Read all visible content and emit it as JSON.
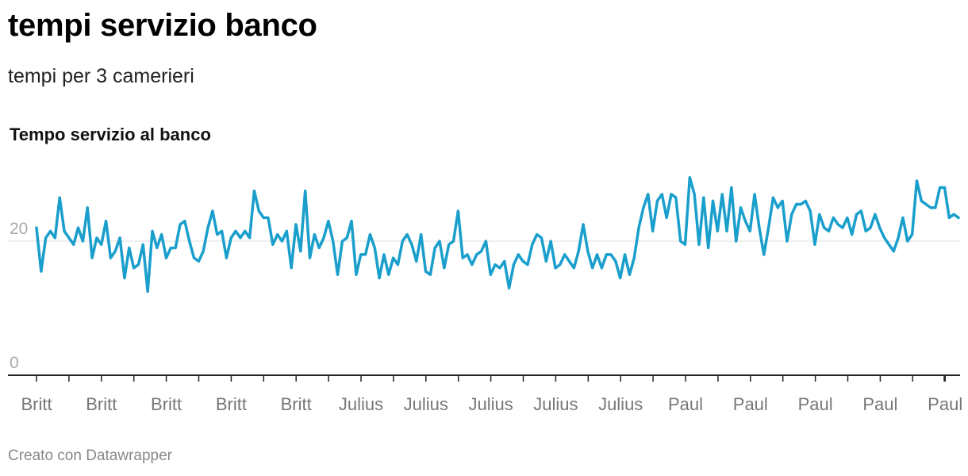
{
  "header": {
    "title": "tempi servizio banco",
    "subtitle": "tempi per 3 camerieri"
  },
  "footer": {
    "credit": "Creato con Datawrapper"
  },
  "colors": {
    "line": "#1a9fcc",
    "grid": "#dddddd",
    "axis": "#222222",
    "tick_label": "#777777",
    "y_tick_label": "#aaaaaa"
  },
  "chart_data": {
    "type": "line",
    "title": "Tempo servizio al banco",
    "xlabel": "",
    "ylabel": "",
    "ylim": [
      0,
      30
    ],
    "grid": "horizontal",
    "y_ticks": [
      0,
      20
    ],
    "x_tick_labels": [
      "Britt",
      "Britt",
      "Britt",
      "Britt",
      "Britt",
      "Julius",
      "Julius",
      "Julius",
      "Julius",
      "Julius",
      "Paul",
      "Paul",
      "Paul",
      "Paul",
      "Paul"
    ],
    "series": [
      {
        "values": [
          22,
          15.5,
          20.5,
          21.5,
          20.5,
          26.5,
          21.5,
          20.5,
          19.5,
          22,
          20,
          25,
          17.5,
          20.5,
          19.5,
          23,
          17.5,
          18.5,
          20.5,
          14.5,
          19,
          16,
          16.5,
          19.5,
          12.5,
          21.5,
          19,
          21,
          17.5,
          19,
          19,
          22.5,
          23,
          20,
          17.5,
          17,
          18.5,
          22,
          24.5,
          21,
          21.5,
          17.5,
          20.5,
          21.5,
          20.5,
          21.5,
          20.5,
          27.5,
          24.5,
          23.5,
          23.5,
          19.5,
          21,
          20,
          21.5,
          16,
          22.5,
          18.5,
          27.5,
          17.5,
          21,
          19,
          20.5,
          23,
          20,
          15,
          20,
          20.5,
          23,
          15,
          18,
          18,
          21,
          19,
          14.5,
          18,
          15,
          17.5,
          16.5,
          20,
          21,
          19.5,
          17,
          21,
          15.5,
          15,
          19,
          20,
          16,
          19.5,
          20,
          24.5,
          17.5,
          18,
          16.5,
          18,
          18.5,
          20,
          15,
          16.5,
          16,
          17,
          13,
          16.5,
          18,
          17,
          16.5,
          19.5,
          21,
          20.5,
          17,
          20,
          16,
          16.5,
          18,
          17,
          16,
          18.5,
          22.5,
          18.5,
          16,
          18,
          16,
          18,
          18,
          17,
          14.5,
          18,
          15,
          17.5,
          22,
          25,
          27,
          21.5,
          26,
          27,
          23.5,
          27,
          26.5,
          20,
          19.5,
          29.5,
          27,
          19.5,
          26.5,
          19,
          26,
          21.5,
          27,
          21.5,
          28,
          20,
          25,
          23,
          21.5,
          27,
          22,
          18,
          22,
          26.5,
          25,
          26,
          20,
          24,
          25.5,
          25.5,
          26,
          24.5,
          19.5,
          24,
          22,
          21.5,
          23.5,
          22.5,
          22,
          23.5,
          21,
          24,
          24.5,
          21.5,
          22,
          24,
          22,
          20.5,
          19.5,
          18.5,
          20.5,
          23.5,
          20,
          21,
          29,
          26,
          25.5,
          25,
          25,
          28,
          28,
          23.5,
          24,
          23.5
        ]
      }
    ]
  }
}
